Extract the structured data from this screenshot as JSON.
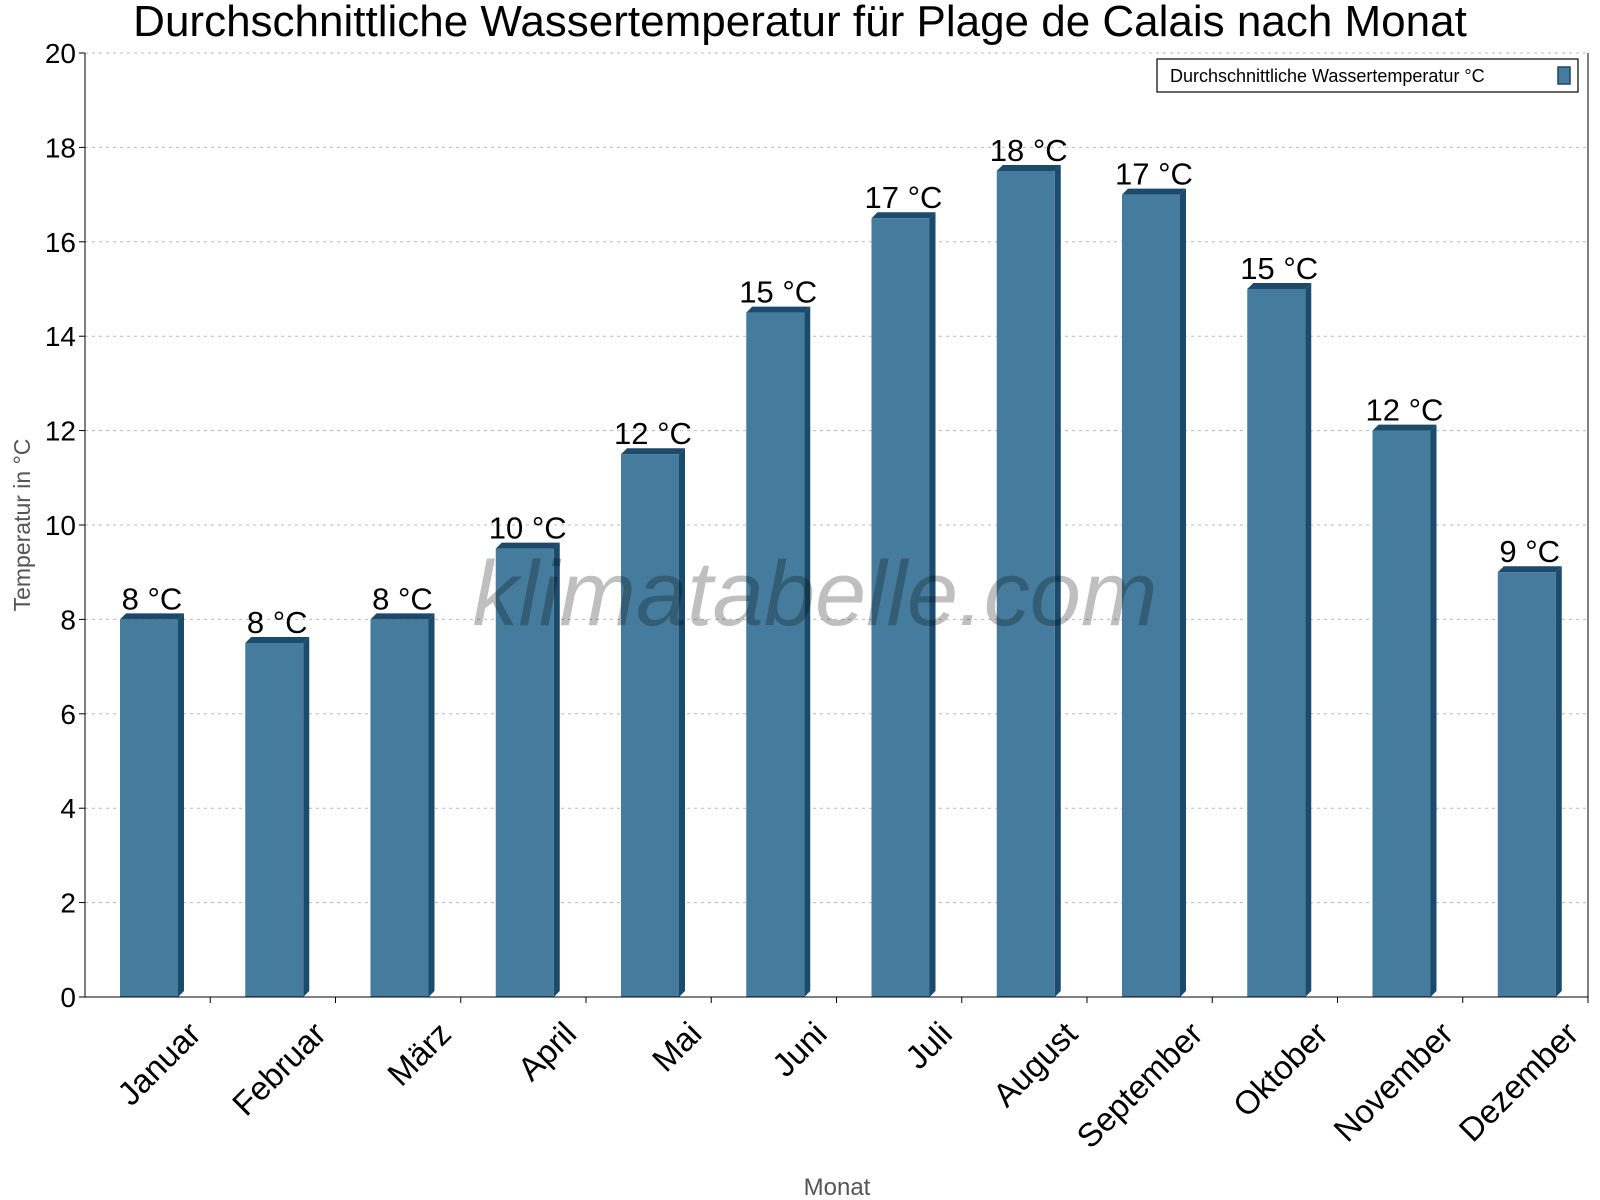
{
  "chart_data": {
    "type": "bar",
    "title": "Durchschnittliche Wassertemperatur für Plage de Calais nach Monat",
    "xlabel": "Monat",
    "ylabel": "Temperatur in °C",
    "ylim": [
      0,
      20
    ],
    "yticks": [
      0,
      2,
      4,
      6,
      8,
      10,
      12,
      14,
      16,
      18,
      20
    ],
    "grid": true,
    "legend_position": "top-right",
    "categories": [
      "Januar",
      "Februar",
      "März",
      "April",
      "Mai",
      "Juni",
      "Juli",
      "August",
      "September",
      "Oktober",
      "November",
      "Dezember"
    ],
    "series": [
      {
        "name": "Durchschnittliche Wassertemperatur °C",
        "values": [
          8,
          7.5,
          8,
          9.5,
          11.5,
          14.5,
          16.5,
          17.5,
          17,
          15,
          12,
          9
        ],
        "data_labels": [
          "8 °C",
          "8 °C",
          "8 °C",
          "10 °C",
          "12 °C",
          "15 °C",
          "17 °C",
          "18 °C",
          "17 °C",
          "15 °C",
          "12 °C",
          "9 °C"
        ],
        "color": "#457b9d",
        "side_color": "#1b4a6b"
      }
    ],
    "watermark": "klimatabelle.com"
  }
}
